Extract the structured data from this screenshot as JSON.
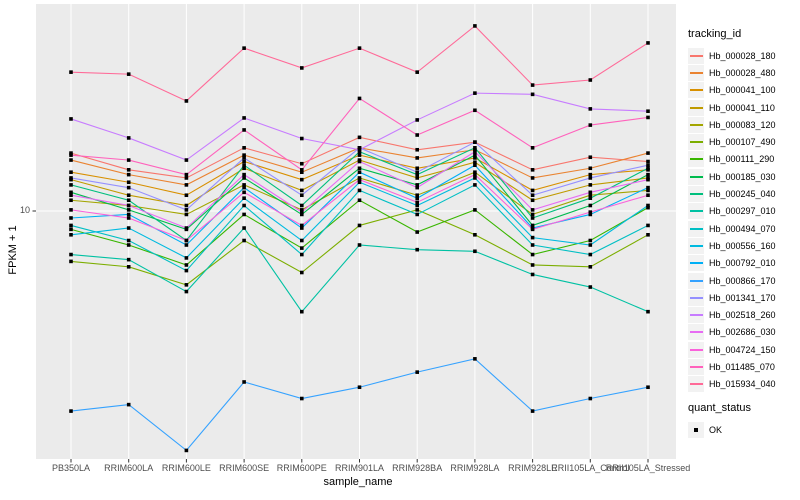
{
  "colors": {
    "panel_bg": "#EBEBEB",
    "grid": "#FFFFFF",
    "tick_mark": "#333333",
    "tick_text": "#4D4D4D",
    "title_text": "#000000",
    "legend_key_bg": "#F2F2F2",
    "point": "#000000"
  },
  "legend": {
    "tracking_title": "tracking_id",
    "quant_title": "quant_status",
    "quant_items": [
      {
        "label": "OK",
        "marker": "black-square"
      }
    ]
  },
  "chart_data": {
    "type": "line",
    "x_type": "categorical",
    "y_scale": "log10",
    "xlabel": "sample_name",
    "ylabel": "FPKM + 1",
    "y_tick_label": "10",
    "y_ticks": [
      10
    ],
    "ylim": [
      1.1,
      62
    ],
    "grid": "vertical-category-lines plus major y line at 10",
    "legend_position": "right",
    "point_marker": "black-square",
    "categories": [
      "PB350LA",
      "RRIM600LA",
      "RRIM600LE",
      "RRIM600SE",
      "RRIM600PE",
      "RRIM901LA",
      "RRIM928BA",
      "RRIM928LA",
      "RRIM928LE",
      "RRII105LA_Control",
      "RRII105LA_Stressed"
    ],
    "series": [
      {
        "name": "Hb_000028_180",
        "color": "#F8766D",
        "values": [
          16.7,
          14.4,
          13.4,
          17.5,
          15.2,
          19.2,
          17.2,
          18.4,
          14.4,
          16.1,
          15.5
        ]
      },
      {
        "name": "Hb_000028_480",
        "color": "#EA8331",
        "values": [
          15.7,
          13.8,
          12.6,
          16.4,
          14.1,
          17.5,
          16.0,
          17.2,
          13.4,
          14.6,
          16.7
        ]
      },
      {
        "name": "Hb_000041_100",
        "color": "#D89000",
        "values": [
          14.1,
          12.9,
          11.5,
          15.5,
          13.2,
          16.4,
          14.6,
          16.0,
          12.0,
          13.8,
          14.4
        ]
      },
      {
        "name": "Hb_000041_110",
        "color": "#C09B00",
        "values": [
          13.2,
          11.5,
          10.5,
          14.6,
          12.0,
          15.7,
          13.4,
          15.4,
          11.0,
          12.6,
          13.4
        ]
      },
      {
        "name": "Hb_000083_120",
        "color": "#A3A500",
        "values": [
          11.0,
          10.5,
          9.7,
          12.6,
          10.1,
          13.4,
          11.5,
          14.1,
          9.7,
          11.5,
          12.0
        ]
      },
      {
        "name": "Hb_000107_490",
        "color": "#7CAE00",
        "values": [
          6.4,
          6.1,
          5.2,
          7.7,
          5.8,
          8.8,
          10.1,
          8.1,
          6.2,
          6.1,
          8.1
        ]
      },
      {
        "name": "Hb_000111_290",
        "color": "#39B600",
        "values": [
          8.5,
          7.4,
          6.2,
          9.7,
          7.2,
          11.0,
          8.3,
          10.1,
          6.8,
          7.7,
          10.3
        ]
      },
      {
        "name": "Hb_000185_030",
        "color": "#00BB4E",
        "values": [
          11.8,
          10.1,
          8.5,
          13.4,
          9.7,
          14.6,
          12.6,
          16.4,
          8.8,
          10.5,
          13.8
        ]
      },
      {
        "name": "Hb_000245_040",
        "color": "#00BF7D",
        "values": [
          12.6,
          11.0,
          7.7,
          15.0,
          10.5,
          16.9,
          13.8,
          17.5,
          9.4,
          11.2,
          14.6
        ]
      },
      {
        "name": "Hb_000297_010",
        "color": "#00C1A3",
        "values": [
          6.8,
          6.5,
          4.9,
          8.6,
          4.1,
          7.4,
          7.1,
          7.0,
          5.7,
          5.1,
          4.1
        ]
      },
      {
        "name": "Hb_000494_070",
        "color": "#00BFC4",
        "values": [
          8.8,
          7.7,
          5.9,
          10.5,
          6.8,
          12.0,
          9.7,
          12.6,
          7.4,
          6.8,
          8.8
        ]
      },
      {
        "name": "Hb_000556_160",
        "color": "#00BAE0",
        "values": [
          8.1,
          8.6,
          6.6,
          11.2,
          7.7,
          12.9,
          10.5,
          13.4,
          7.9,
          7.4,
          10.5
        ]
      },
      {
        "name": "Hb_000792_010",
        "color": "#00B0F6",
        "values": [
          9.4,
          9.7,
          7.4,
          12.3,
          8.6,
          14.1,
          11.2,
          15.0,
          8.6,
          9.7,
          12.3
        ]
      },
      {
        "name": "Hb_000866_170",
        "color": "#35A2FF",
        "values": [
          1.7,
          1.8,
          1.2,
          2.2,
          1.9,
          2.1,
          2.4,
          2.7,
          1.7,
          1.9,
          2.1
        ]
      },
      {
        "name": "Hb_001341_170",
        "color": "#9590FF",
        "values": [
          13.4,
          12.3,
          10.1,
          16.0,
          11.5,
          17.5,
          14.1,
          18.4,
          11.5,
          13.4,
          15.0
        ]
      },
      {
        "name": "Hb_002518_260",
        "color": "#C77CFF",
        "values": [
          22.6,
          19.1,
          15.7,
          22.8,
          19.0,
          17.2,
          22.4,
          28.4,
          28.1,
          24.7,
          24.2
        ]
      },
      {
        "name": "Hb_002686_030",
        "color": "#E76BF3",
        "values": [
          11.5,
          10.5,
          8.6,
          13.8,
          9.9,
          15.5,
          12.3,
          16.9,
          10.1,
          11.8,
          13.2
        ]
      },
      {
        "name": "Hb_004724_150",
        "color": "#FA62DB",
        "values": [
          10.1,
          9.4,
          7.7,
          11.8,
          8.8,
          13.2,
          10.8,
          13.8,
          8.5,
          9.9,
          11.5
        ]
      },
      {
        "name": "Hb_011485_070",
        "color": "#FF62BC",
        "values": [
          16.4,
          15.7,
          13.8,
          20.5,
          14.4,
          27.1,
          19.6,
          24.4,
          17.5,
          21.4,
          22.9
        ]
      },
      {
        "name": "Hb_015934_040",
        "color": "#FF6A98",
        "values": [
          34.2,
          33.6,
          26.5,
          42.3,
          35.5,
          42.3,
          34.2,
          51.5,
          30.5,
          31.9,
          44.3
        ]
      }
    ]
  }
}
